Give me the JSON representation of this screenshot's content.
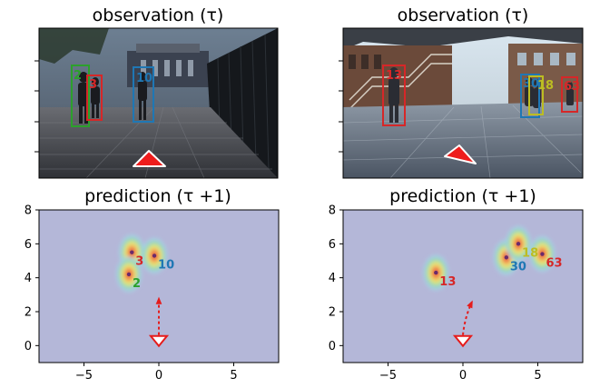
{
  "panels": [
    {
      "observation_title": "observation (τ)",
      "prediction_title": "prediction (τ +1)",
      "photo_scene": "outdoor-walkway-night",
      "boxes": [
        {
          "label": "2",
          "color": "#2ca02c"
        },
        {
          "label": "3",
          "color": "#d62728"
        },
        {
          "label": "10",
          "color": "#1f77b4"
        }
      ],
      "predicted": [
        {
          "label": "3",
          "color": "#d62728",
          "x": -1.8,
          "y": 5.5
        },
        {
          "label": "10",
          "color": "#1f77b4",
          "x": -0.3,
          "y": 5.3
        },
        {
          "label": "2",
          "color": "#2ca02c",
          "x": -2.0,
          "y": 4.2
        }
      ],
      "robot": {
        "x": 0,
        "y": 0.3,
        "heading_to": [
          0.0,
          3.2
        ]
      }
    },
    {
      "observation_title": "observation (τ)",
      "prediction_title": "prediction (τ +1)",
      "photo_scene": "indoor-atrium-day",
      "boxes": [
        {
          "label": "13",
          "color": "#d62728"
        },
        {
          "label": "30",
          "color": "#1f77b4"
        },
        {
          "label": "18",
          "color": "#bcbd22"
        },
        {
          "label": "63",
          "color": "#d62728"
        }
      ],
      "predicted": [
        {
          "label": "13",
          "color": "#d62728",
          "x": -1.8,
          "y": 4.3
        },
        {
          "label": "30",
          "color": "#1f77b4",
          "x": 2.9,
          "y": 5.2
        },
        {
          "label": "18",
          "color": "#bcbd22",
          "x": 3.7,
          "y": 6.0
        },
        {
          "label": "63",
          "color": "#d62728",
          "x": 5.3,
          "y": 5.4
        }
      ],
      "robot": {
        "x": 0,
        "y": 0.3,
        "heading_to": [
          0.6,
          3.0
        ]
      }
    }
  ],
  "chart_data": [
    {
      "type": "scatter",
      "title": "prediction (τ +1)",
      "xlim": [
        -8,
        8
      ],
      "ylim": [
        -1,
        8
      ],
      "xticks": [
        "−5",
        "0",
        "5"
      ],
      "yticks": [
        "0",
        "2",
        "4",
        "6",
        "8"
      ],
      "points": [
        {
          "label": "3",
          "x": -1.8,
          "y": 5.5
        },
        {
          "label": "10",
          "x": -0.3,
          "y": 5.3
        },
        {
          "label": "2",
          "x": -2.0,
          "y": 4.2
        }
      ]
    },
    {
      "type": "scatter",
      "title": "prediction (τ +1)",
      "xlim": [
        -8,
        8
      ],
      "ylim": [
        -1,
        8
      ],
      "xticks": [
        "−5",
        "0",
        "5"
      ],
      "yticks": [
        "0",
        "2",
        "4",
        "6",
        "8"
      ],
      "points": [
        {
          "label": "13",
          "x": -1.8,
          "y": 4.3
        },
        {
          "label": "30",
          "x": 2.9,
          "y": 5.2
        },
        {
          "label": "18",
          "x": 3.7,
          "y": 6.0
        },
        {
          "label": "63",
          "x": 5.3,
          "y": 5.4
        }
      ]
    }
  ]
}
